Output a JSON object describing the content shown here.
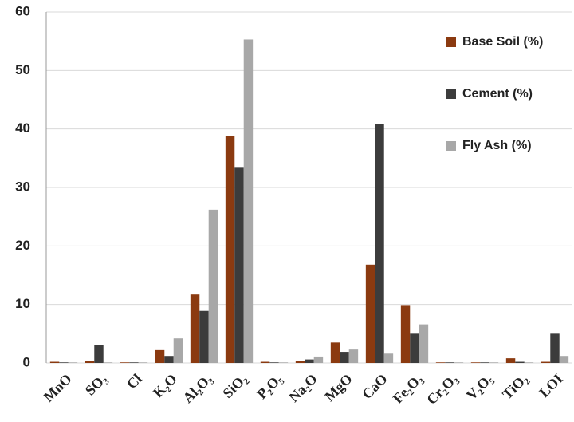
{
  "chart_data": {
    "type": "bar",
    "categories": [
      "MnO",
      "SO₃",
      "Cl",
      "K₂O",
      "Al₂O₃",
      "SiO₂",
      "P₂O₅",
      "Na₂O",
      "MgO",
      "CaO",
      "Fe₂O₃",
      "Cr₂O₃",
      "V₂O₅",
      "TiO₂",
      "LOI"
    ],
    "series": [
      {
        "name": "Base Soil (%)",
        "color": "#8b3a10",
        "values": [
          0.2,
          0.3,
          0.1,
          2.2,
          11.7,
          38.8,
          0.2,
          0.3,
          3.5,
          16.8,
          9.9,
          0.1,
          0.1,
          0.8,
          0.2
        ]
      },
      {
        "name": "Cement (%)",
        "color": "#3c3c3c",
        "values": [
          0.1,
          3.0,
          0.1,
          1.2,
          8.9,
          33.5,
          0.1,
          0.6,
          1.9,
          40.8,
          5.0,
          0.1,
          0.1,
          0.2,
          5.0
        ]
      },
      {
        "name": "Fly Ash (%)",
        "color": "#a8a8a8",
        "values": [
          0.1,
          0.1,
          0.1,
          4.2,
          26.2,
          55.3,
          0.1,
          1.1,
          2.3,
          1.6,
          6.6,
          0.1,
          0.1,
          0.1,
          1.2
        ]
      }
    ],
    "ylim": [
      0,
      60
    ],
    "yticks": [
      0,
      10,
      20,
      30,
      40,
      50,
      60
    ],
    "grid": true,
    "legend": "upper right"
  }
}
